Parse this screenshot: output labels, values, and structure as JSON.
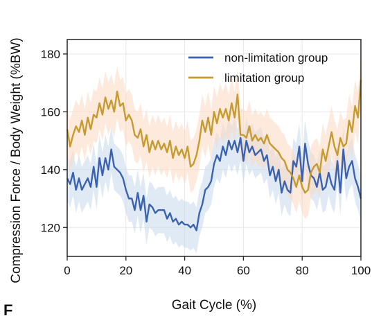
{
  "panel_label": "F",
  "chart_data": {
    "type": "line",
    "xlabel": "Gait Cycle (%)",
    "ylabel": "Compression Force / Body Weight (%BW)",
    "xlim": [
      0,
      100
    ],
    "ylim": [
      110,
      185
    ],
    "xticks": [
      0,
      20,
      40,
      60,
      80,
      100
    ],
    "yticks": [
      120,
      140,
      160,
      180
    ],
    "grid": true,
    "legend_position": "top-right",
    "series": [
      {
        "name": "non-limitation group",
        "color": "#3a62b0",
        "band_color": "#c6d9ec",
        "x": [
          0,
          1,
          2,
          3,
          4,
          5,
          6,
          7,
          8,
          9,
          10,
          11,
          12,
          13,
          14,
          15,
          16,
          17,
          18,
          19,
          20,
          21,
          22,
          23,
          24,
          25,
          26,
          27,
          28,
          29,
          30,
          31,
          32,
          33,
          34,
          35,
          36,
          37,
          38,
          39,
          40,
          41,
          42,
          43,
          44,
          45,
          46,
          47,
          48,
          49,
          50,
          51,
          52,
          53,
          54,
          55,
          56,
          57,
          58,
          59,
          60,
          61,
          62,
          63,
          64,
          65,
          66,
          67,
          68,
          69,
          70,
          71,
          72,
          73,
          74,
          75,
          76,
          77,
          78,
          79,
          80,
          81,
          82,
          83,
          84,
          85,
          86,
          87,
          88,
          89,
          90,
          91,
          92,
          93,
          94,
          95,
          96,
          97,
          98,
          99,
          100
        ],
        "y": [
          137,
          135,
          139,
          133,
          137,
          133,
          135,
          137,
          134,
          141,
          134,
          144,
          138,
          144,
          140,
          147,
          141,
          140,
          139,
          137,
          133,
          130,
          130,
          126,
          132,
          126,
          131,
          122,
          128,
          127,
          125,
          126,
          126,
          126,
          123,
          125,
          122,
          123,
          121,
          122,
          121,
          121,
          120,
          121,
          119,
          125,
          128,
          133,
          134,
          136,
          142,
          145,
          143,
          148,
          145,
          150,
          147,
          150,
          146,
          151,
          143,
          150,
          146,
          148,
          145,
          146,
          147,
          143,
          145,
          138,
          141,
          136,
          140,
          132,
          136,
          133,
          132,
          143,
          141,
          148,
          136,
          149,
          142,
          138,
          137,
          134,
          139,
          133,
          134,
          139,
          135,
          133,
          143,
          132,
          147,
          137,
          141,
          143,
          137,
          134,
          130
        ],
        "band": [
          8,
          8,
          8,
          8,
          8,
          8,
          8,
          8,
          8,
          8,
          8,
          8,
          8,
          8,
          8,
          8,
          8,
          8,
          8,
          8,
          8,
          8,
          8,
          8,
          8,
          8,
          8,
          8,
          8,
          8,
          8,
          8,
          8,
          8,
          8,
          8,
          8,
          8,
          8,
          8,
          8,
          8,
          8,
          8,
          8,
          8,
          8,
          8,
          8,
          8,
          8,
          8,
          8,
          8,
          8,
          8,
          8,
          8,
          8,
          8,
          8,
          8,
          8,
          8,
          8,
          8,
          8,
          8,
          8,
          8,
          8,
          8,
          8,
          8,
          8,
          8,
          8,
          8,
          8,
          8,
          8,
          8,
          8,
          8,
          8,
          8,
          8,
          8,
          8,
          8,
          8,
          8,
          8,
          8,
          8,
          8,
          8,
          8,
          8,
          8,
          8
        ]
      },
      {
        "name": "limitation group",
        "color": "#c79a2e",
        "band_color": "#fcd9bf",
        "x": [
          0,
          1,
          2,
          3,
          4,
          5,
          6,
          7,
          8,
          9,
          10,
          11,
          12,
          13,
          14,
          15,
          16,
          17,
          18,
          19,
          20,
          21,
          22,
          23,
          24,
          25,
          26,
          27,
          28,
          29,
          30,
          31,
          32,
          33,
          34,
          35,
          36,
          37,
          38,
          39,
          40,
          41,
          42,
          43,
          44,
          45,
          46,
          47,
          48,
          49,
          50,
          51,
          52,
          53,
          54,
          55,
          56,
          57,
          58,
          59,
          60,
          61,
          62,
          63,
          64,
          65,
          66,
          67,
          68,
          69,
          70,
          71,
          72,
          73,
          74,
          75,
          76,
          77,
          78,
          79,
          80,
          81,
          82,
          83,
          84,
          85,
          86,
          87,
          88,
          89,
          90,
          91,
          92,
          93,
          94,
          95,
          96,
          97,
          98,
          99,
          100
        ],
        "y": [
          154,
          148,
          152,
          155,
          153,
          157,
          152,
          158,
          154,
          159,
          158,
          163,
          159,
          165,
          161,
          164,
          160,
          167,
          162,
          163,
          157,
          159,
          157,
          152,
          151,
          154,
          148,
          152,
          146,
          150,
          147,
          150,
          147,
          149,
          146,
          150,
          144,
          148,
          145,
          147,
          144,
          148,
          141,
          142,
          145,
          150,
          157,
          153,
          158,
          152,
          160,
          156,
          161,
          158,
          161,
          157,
          163,
          158,
          166,
          152,
          152,
          151,
          155,
          150,
          152,
          150,
          151,
          149,
          152,
          149,
          148,
          147,
          146,
          144,
          143,
          140,
          139,
          137,
          134,
          138,
          134,
          132,
          133,
          139,
          141,
          142,
          139,
          147,
          143,
          148,
          153,
          148,
          145,
          151,
          148,
          149,
          157,
          153,
          162,
          158,
          171
        ],
        "band": [
          9,
          9,
          9,
          9,
          9,
          9,
          9,
          9,
          9,
          9,
          9,
          9,
          9,
          9,
          9,
          9,
          9,
          9,
          9,
          9,
          9,
          9,
          9,
          9,
          9,
          9,
          9,
          9,
          9,
          9,
          9,
          9,
          9,
          9,
          9,
          9,
          9,
          9,
          9,
          9,
          9,
          9,
          9,
          9,
          9,
          9,
          9,
          9,
          9,
          9,
          9,
          9,
          9,
          9,
          9,
          9,
          9,
          9,
          9,
          9,
          9,
          9,
          9,
          9,
          9,
          9,
          9,
          9,
          9,
          9,
          9,
          9,
          9,
          9,
          9,
          9,
          9,
          9,
          9,
          9,
          9,
          9,
          9,
          9,
          9,
          9,
          9,
          9,
          9,
          9,
          9,
          9,
          9,
          9,
          9,
          9,
          9,
          9,
          9,
          9,
          9
        ]
      }
    ]
  }
}
